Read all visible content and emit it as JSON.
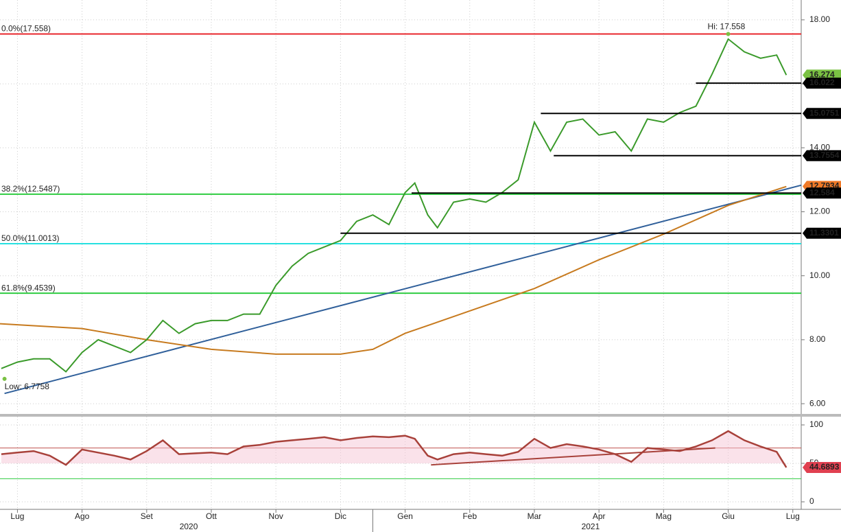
{
  "chart_data": {
    "type": "financial",
    "xlim": [
      -0.27,
      12.13
    ],
    "xticks": [
      {
        "value": 0,
        "label": "Lug"
      },
      {
        "value": 1,
        "label": "Ago"
      },
      {
        "value": 2,
        "label": "Set"
      },
      {
        "value": 3,
        "label": "Ott"
      },
      {
        "value": 4,
        "label": "Nov"
      },
      {
        "value": 5,
        "label": "Dic"
      },
      {
        "value": 6,
        "label": "Gen"
      },
      {
        "value": 7,
        "label": "Feb"
      },
      {
        "value": 8,
        "label": "Mar"
      },
      {
        "value": 9,
        "label": "Apr"
      },
      {
        "value": 10,
        "label": "Mag"
      },
      {
        "value": 11,
        "label": "Giu"
      },
      {
        "value": 12,
        "label": "Lug"
      }
    ],
    "years": [
      {
        "label": "2020",
        "x": 2.65
      },
      {
        "label": "2021",
        "x": 8.87
      }
    ],
    "year_break": 5.5,
    "ylim": [
      5.68,
      18.62
    ],
    "yticks": [
      {
        "value": 6,
        "label": "6.00"
      },
      {
        "value": 8,
        "label": "8.00"
      },
      {
        "value": 10,
        "label": "10.00"
      },
      {
        "value": 12,
        "label": "12.00"
      },
      {
        "value": 14,
        "label": "14.00"
      },
      {
        "value": 16,
        "label": "16.00"
      },
      {
        "value": 18,
        "label": "18.00"
      }
    ],
    "price": {
      "color": "#3a9a2a",
      "x": [
        -0.25,
        0,
        0.25,
        0.5,
        0.75,
        1,
        1.25,
        1.5,
        1.75,
        2,
        2.25,
        2.5,
        2.75,
        3,
        3.25,
        3.5,
        3.75,
        4,
        4.25,
        4.5,
        4.75,
        5,
        5.25,
        5.5,
        5.75,
        6,
        6.15,
        6.35,
        6.5,
        6.75,
        7,
        7.25,
        7.5,
        7.75,
        8,
        8.25,
        8.5,
        8.75,
        9,
        9.25,
        9.5,
        9.75,
        10,
        10.25,
        10.5,
        10.75,
        11,
        11.25,
        11.5,
        11.75,
        11.9
      ],
      "values": [
        7.1,
        7.3,
        7.4,
        7.4,
        7.0,
        7.6,
        8.0,
        7.8,
        7.6,
        8.0,
        8.6,
        8.2,
        8.5,
        8.6,
        8.6,
        8.8,
        8.8,
        9.7,
        10.3,
        10.7,
        10.9,
        11.1,
        11.7,
        11.9,
        11.6,
        12.6,
        12.9,
        11.9,
        11.5,
        12.3,
        12.4,
        12.3,
        12.6,
        13.0,
        14.8,
        13.9,
        14.8,
        14.9,
        14.4,
        14.5,
        13.9,
        14.9,
        14.8,
        15.1,
        15.3,
        16.3,
        17.4,
        17.0,
        16.8,
        16.9,
        16.274
      ]
    },
    "moving_average": {
      "color": "#c77a1e",
      "x": [
        -0.27,
        1,
        2,
        3,
        4,
        5,
        5.5,
        6,
        6.5,
        7,
        8,
        9,
        10,
        11,
        11.9
      ],
      "values": [
        8.5,
        8.35,
        8.0,
        7.7,
        7.55,
        7.55,
        7.7,
        8.2,
        8.55,
        8.9,
        9.6,
        10.5,
        11.3,
        12.2,
        12.79
      ]
    },
    "trendline": {
      "color": "#2f5f9a",
      "x": [
        -0.2,
        12.13
      ],
      "values": [
        6.32,
        12.83
      ]
    },
    "fib_levels": [
      {
        "value": 17.558,
        "label": "0.0%(17.558)",
        "color": "#e8262b"
      },
      {
        "value": 12.5487,
        "label": "38.2%(12.5487)",
        "color": "#2ecc40"
      },
      {
        "value": 11.0013,
        "label": "50.0%(11.0013)",
        "color": "#26e0e0"
      },
      {
        "value": 9.4539,
        "label": "61.8%(9.4539)",
        "color": "#2ecc40"
      }
    ],
    "levels": [
      {
        "value": 16.022,
        "x_start": 10.5
      },
      {
        "value": 15.0751,
        "x_start": 8.1
      },
      {
        "value": 13.7554,
        "x_start": 8.3
      },
      {
        "value": 12.584,
        "x_start": 6.1
      },
      {
        "value": 11.3301,
        "x_start": 5.0
      }
    ],
    "tags": [
      {
        "value": 16.274,
        "bg": "#7ac143",
        "fg": "#000"
      },
      {
        "value": 12.7934,
        "bg": "#f07a28",
        "fg": "#000"
      }
    ],
    "annotations": [
      {
        "text": "Hi: 17.558",
        "x": 11.0,
        "y": 17.558
      },
      {
        "text": "Low: 6.7758",
        "x": -0.2,
        "y": 6.7758
      }
    ],
    "rsi": {
      "color": "#a8413a",
      "ylim": [
        -9.8,
        110.7
      ],
      "yticks": [
        0,
        50,
        100
      ],
      "values": [
        62,
        64,
        66,
        60,
        48,
        68,
        64,
        60,
        55,
        66,
        80,
        62,
        63,
        64,
        62,
        72,
        74,
        78,
        80,
        82,
        84,
        80,
        83,
        85,
        84,
        86,
        82,
        60,
        55,
        62,
        64,
        62,
        60,
        65,
        82,
        70,
        75,
        72,
        68,
        62,
        52,
        70,
        68,
        66,
        72,
        80,
        92,
        80,
        72,
        65,
        44.6893
      ],
      "hlines": [
        {
          "value": 70,
          "color": "#c0504d"
        },
        {
          "value": 30,
          "color": "#2ecc40"
        }
      ],
      "trend": {
        "x": [
          6.4,
          10.8
        ],
        "values": [
          48,
          70
        ]
      }
    }
  }
}
